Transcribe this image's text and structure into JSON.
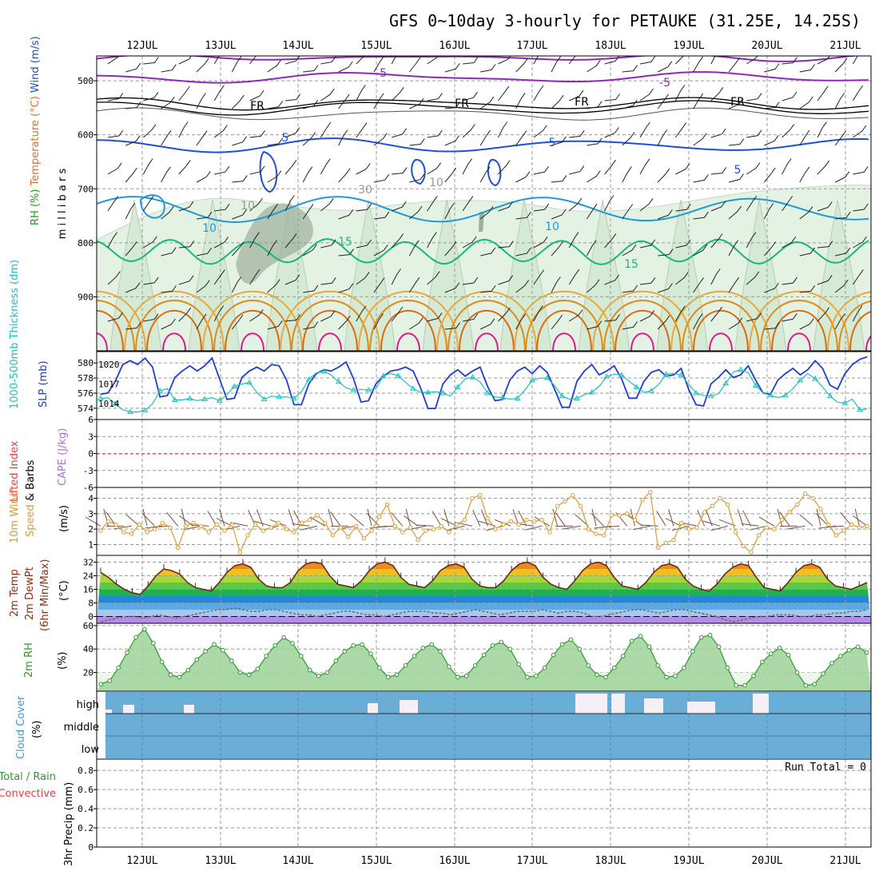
{
  "title": "GFS 0~10day 3-hourly for PETAUKE (31.25E, 14.25S)",
  "dates": [
    "12JUL",
    "13JUL",
    "14JUL",
    "15JUL",
    "16JUL",
    "17JUL",
    "18JUL",
    "19JUL",
    "20JUL",
    "21JUL"
  ],
  "run_total_label": "Run Total = 0",
  "chart_data": [
    {
      "type": "heatmap",
      "panel": "upper-air",
      "ylabel_parts": [
        "RH (%)",
        "Temperature (°C)",
        "Wind (m/s)"
      ],
      "yunit": "m i l l i b a r s",
      "yticks": [
        "500",
        "600",
        "700",
        "800",
        "900"
      ],
      "ylim": [
        1000,
        454
      ],
      "contour_labels": {
        "purple": [
          "-5",
          "-5"
        ],
        "black": [
          "FR",
          "FR",
          "FR",
          "FR"
        ],
        "blue": [
          "5",
          "5",
          "5"
        ],
        "lightblue": [
          "10",
          "10"
        ],
        "green": [
          "15",
          "15"
        ],
        "gray": [
          "30",
          "10",
          "10"
        ]
      },
      "colors": {
        "purple": "#8a2bb8",
        "black": "#000000",
        "blue": "#1f4fd6",
        "lightblue": "#1e9ad6",
        "green": "#19b67d",
        "orange": "#e08a18",
        "magenta": "#dd1a8a",
        "rh_light": "#e4f2e4",
        "rh_dark": "#9caf9c"
      }
    },
    {
      "type": "line",
      "panel": "thickness-slp",
      "ylabel_left": "1000-500mb Thickness (dm)",
      "ylabel_right": "SLP (mb)",
      "yticks_left": [
        "574",
        "576",
        "578",
        "580"
      ],
      "yticks_right": [
        "1014",
        "1017",
        "1020"
      ],
      "ylim_left": [
        572.5,
        581.5
      ],
      "ylim_right": [
        1011.5,
        1022
      ],
      "series": [
        {
          "name": "SLP (mb)",
          "color": "#1f3fcf",
          "axis": "right",
          "values": [
            1015.4,
            1015.6,
            1017.4,
            1020,
            1020.6,
            1020,
            1021,
            1019.6,
            1015,
            1015.2,
            1018,
            1019,
            1019.8,
            1019,
            1019.8,
            1021,
            1017.8,
            1014.6,
            1014.8,
            1018,
            1019,
            1019.6,
            1019,
            1020,
            1019.8,
            1017.6,
            1013.8,
            1013.8,
            1017,
            1018.6,
            1019.2,
            1019,
            1019.6,
            1020.4,
            1017.8,
            1014.2,
            1014.4,
            1017,
            1018.2,
            1019,
            1019.2,
            1019.6,
            1019,
            1016.4,
            1013.2,
            1013.2,
            1017,
            1018.4,
            1019.2,
            1018.2,
            1019,
            1019.6,
            1016.6,
            1014.4,
            1014.6,
            1017.6,
            1019,
            1019.6,
            1018.6,
            1019.8,
            1018.8,
            1016.2,
            1013.4,
            1013.4,
            1017.4,
            1019,
            1020,
            1018.4,
            1019,
            1019.8,
            1017.8,
            1014.8,
            1014.8,
            1017.4,
            1018.8,
            1019.2,
            1018.2,
            1018.4,
            1019.4,
            1016.2,
            1013.8,
            1013.6,
            1017,
            1018,
            1019.2,
            1018,
            1018.4,
            1019.8,
            1017.6,
            1015.6,
            1015.4,
            1017.6,
            1018.6,
            1019.4,
            1018.4,
            1019.2,
            1020.6,
            1019.4,
            1016.8,
            1016.2,
            1018.6,
            1020,
            1020.8,
            1021.2
          ]
        },
        {
          "name": "1000-500mb Thickness (dm)",
          "color": "#1ec0c0",
          "axis": "left",
          "values": [
            575.3,
            575.4,
            574.6,
            573.8,
            573.5,
            573.5,
            573.7,
            574.6,
            576.3,
            576.6,
            575.1,
            575.1,
            575.3,
            575.0,
            575.2,
            575.4,
            575.0,
            575.8,
            576.9,
            577.2,
            577.4,
            576.1,
            575.2,
            575.6,
            575.5,
            575.5,
            575.3,
            576.2,
            577.8,
            578.7,
            578.9,
            578.4,
            577.5,
            576.7,
            576.4,
            576.5,
            576.4,
            576.6,
            578.3,
            578.6,
            578.3,
            577.4,
            576.6,
            576.1,
            576.1,
            576.2,
            576.0,
            575.6,
            576.8,
            577.9,
            578.1,
            577.5,
            576.0,
            575.5,
            575.4,
            575.2,
            575.3,
            576.4,
            577.7,
            578.0,
            578.0,
            577.0,
            575.6,
            575.2,
            575.3,
            575.8,
            576.1,
            576.9,
            578.2,
            578.5,
            578.4,
            577.6,
            576.8,
            576.1,
            576.3,
            577.2,
            578.5,
            578.6,
            578.4,
            577.2,
            576.0,
            575.7,
            575.6,
            575.9,
            577.3,
            578.8,
            579.1,
            578.7,
            577.0,
            576.0,
            575.7,
            575.4,
            575.7,
            576.6,
            577.7,
            578.6,
            577.9,
            576.8,
            575.6,
            574.8,
            574.7,
            575.2,
            573.8,
            573.9
          ]
        }
      ]
    },
    {
      "type": "line",
      "panel": "cape-li",
      "ylabel_left": "Lifted Index",
      "ylabel_right": "CAPE (J/kg)",
      "yticks": [
        "6",
        "3",
        "0",
        "-3",
        "-6"
      ],
      "ylim": [
        -6,
        6
      ],
      "series": []
    },
    {
      "type": "line",
      "panel": "wind10m",
      "ylabel_left": "10m Wind",
      "ylabel_mid": "Speed & Barbs",
      "yunit": "(m/s)",
      "yticks": [
        "1",
        "2",
        "3",
        "4"
      ],
      "ylim": [
        0.3,
        4.7
      ],
      "series": [
        {
          "name": "10m Wind Speed",
          "color": "#e09a30",
          "values": [
            1.9,
            2.5,
            2.3,
            1.8,
            1.7,
            2.3,
            1.8,
            2.0,
            2.4,
            2.1,
            0.8,
            2.2,
            2.4,
            2.2,
            1.8,
            2.3,
            1.9,
            2.3,
            0.5,
            1.6,
            2.3,
            1.9,
            2.1,
            2.4,
            2.0,
            1.8,
            2.4,
            2.6,
            2.9,
            2.4,
            1.6,
            2.1,
            1.5,
            2.2,
            1.4,
            1.9,
            2.8,
            3.6,
            2.2,
            1.8,
            2.1,
            1.3,
            1.9,
            2.0,
            2.2,
            1.8,
            2.3,
            2.6,
            4.0,
            4.2,
            2.7,
            2.0,
            2.3,
            2.5,
            2.3,
            2.6,
            2.5,
            2.6,
            1.8,
            3.5,
            3.8,
            4.2,
            3.5,
            2.0,
            1.7,
            1.6,
            2.9,
            2.9,
            3.0,
            2.6,
            3.9,
            4.4,
            0.8,
            1.1,
            1.3,
            2.4,
            2.0,
            2.1,
            3.1,
            3.5,
            4.0,
            3.6,
            1.8,
            0.9,
            0.5,
            1.6,
            2.1,
            2.0,
            2.6,
            3.1,
            3.6,
            4.3,
            4.0,
            3.3,
            2.3,
            1.6,
            1.9,
            2.3,
            2.1,
            2.2
          ]
        }
      ]
    },
    {
      "type": "area",
      "panel": "temp2m",
      "ylabel_parts": [
        "2m Temp",
        "2m DewPt",
        "(6hr Min/Max)"
      ],
      "yunit": "(°C)",
      "yticks": [
        "0",
        "8",
        "16",
        "24",
        "32"
      ],
      "ylim": [
        -4,
        36
      ],
      "series": [
        {
          "name": "2m Temp",
          "color": "#6b2a12",
          "values": [
            26,
            23,
            19,
            16,
            14,
            13,
            18,
            24,
            28,
            27,
            25,
            20,
            17,
            16,
            15,
            20,
            26,
            30,
            31,
            29,
            22,
            18,
            17,
            17,
            20,
            27,
            31,
            32,
            31,
            24,
            19,
            18,
            17,
            21,
            27,
            31,
            32,
            30,
            23,
            19,
            18,
            17,
            21,
            27,
            30,
            31,
            29,
            22,
            18,
            17,
            17,
            21,
            27,
            31,
            32,
            30,
            23,
            19,
            17,
            16,
            21,
            27,
            31,
            32,
            30,
            23,
            18,
            17,
            16,
            20,
            26,
            30,
            31,
            29,
            22,
            18,
            16,
            15,
            19,
            25,
            29,
            31,
            30,
            23,
            17,
            16,
            15,
            20,
            26,
            30,
            31,
            29,
            22,
            18,
            17,
            16,
            18,
            20
          ]
        },
        {
          "name": "2m DewPt",
          "color": "#7a6a55",
          "values": [
            -3,
            -2,
            -1,
            0,
            0,
            -1,
            0,
            1,
            0,
            -1,
            0,
            1,
            2,
            3,
            4,
            4,
            5,
            4,
            3,
            3,
            4,
            4,
            3,
            2,
            1,
            1,
            0,
            1,
            2,
            3,
            3,
            2,
            1,
            1,
            0,
            1,
            2,
            3,
            3,
            3,
            2,
            2,
            1,
            2,
            3,
            4,
            3,
            2,
            1,
            2,
            3,
            3,
            3,
            4,
            3,
            2,
            3,
            3,
            2,
            0,
            0,
            1,
            2,
            3,
            4,
            4,
            3,
            2,
            3,
            4,
            4,
            3,
            2,
            1,
            0,
            -2,
            -3,
            -2,
            -1,
            0,
            0,
            1,
            1,
            1,
            0,
            0,
            1,
            1,
            2,
            2,
            3,
            3,
            4
          ]
        }
      ]
    },
    {
      "type": "area",
      "panel": "rh2m",
      "ylabel": "2m RH",
      "yunit": "(%)",
      "yticks": [
        "20",
        "40",
        "60"
      ],
      "ylim": [
        4,
        62
      ],
      "series": [
        {
          "name": "2m RH",
          "color": "#2c9a2c",
          "values": [
            10,
            13,
            24,
            37,
            50,
            57,
            45,
            29,
            18,
            16,
            22,
            31,
            38,
            44,
            39,
            30,
            20,
            18,
            23,
            34,
            43,
            50,
            45,
            34,
            22,
            17,
            20,
            30,
            38,
            43,
            44,
            36,
            24,
            16,
            18,
            26,
            34,
            41,
            44,
            38,
            25,
            16,
            17,
            26,
            35,
            43,
            46,
            40,
            27,
            16,
            17,
            24,
            35,
            44,
            48,
            40,
            26,
            18,
            16,
            24,
            34,
            47,
            51,
            42,
            26,
            16,
            17,
            24,
            38,
            50,
            52,
            42,
            24,
            9,
            9,
            17,
            29,
            36,
            41,
            35,
            20,
            9,
            10,
            19,
            28,
            34,
            39,
            42,
            37
          ]
        }
      ]
    },
    {
      "type": "bar",
      "panel": "cloud",
      "ylabel": "Cloud Cover",
      "yunit": "(%)",
      "levels": [
        "high",
        "middle",
        "low"
      ],
      "colors": {
        "cover": "#6aaed8",
        "clear": "#f5f0f8"
      },
      "series": [
        {
          "name": "high",
          "values": [
            0,
            18,
            35,
            30,
            0,
            0,
            0,
            0,
            0,
            0,
            0,
            0,
            0,
            0,
            0,
            0,
            0,
            0,
            0,
            0,
            0,
            0,
            0,
            0,
            0,
            0,
            0,
            0,
            0,
            0,
            0,
            0,
            0,
            0,
            0,
            0,
            0,
            0,
            0,
            0,
            0,
            0,
            0,
            0,
            0,
            0,
            0,
            0,
            0,
            0,
            0,
            0,
            0,
            0,
            0,
            0,
            0,
            0,
            0,
            0,
            0,
            0,
            0,
            0,
            0,
            0,
            0,
            0,
            0,
            0,
            0,
            0,
            0,
            0,
            0,
            0,
            0,
            0,
            0,
            0,
            0,
            0,
            0,
            0,
            0,
            0,
            0,
            0,
            0,
            0,
            0,
            0,
            0,
            0,
            0,
            0,
            0,
            0,
            0,
            0,
            0,
            0,
            0,
            0
          ]
        },
        {
          "name": "middle",
          "values": []
        },
        {
          "name": "low",
          "values": []
        }
      ]
    },
    {
      "type": "bar",
      "panel": "precip",
      "ylabel_parts": [
        "Total / Rain",
        "Convective"
      ],
      "yunit": "3hr Precip (mm)",
      "yticks": [
        "0",
        "0.2",
        "0.4",
        "0.6",
        "0.8"
      ],
      "ylim": [
        0,
        0.9
      ],
      "series": [
        {
          "name": "Total",
          "values": []
        },
        {
          "name": "Convective",
          "values": []
        }
      ]
    }
  ]
}
